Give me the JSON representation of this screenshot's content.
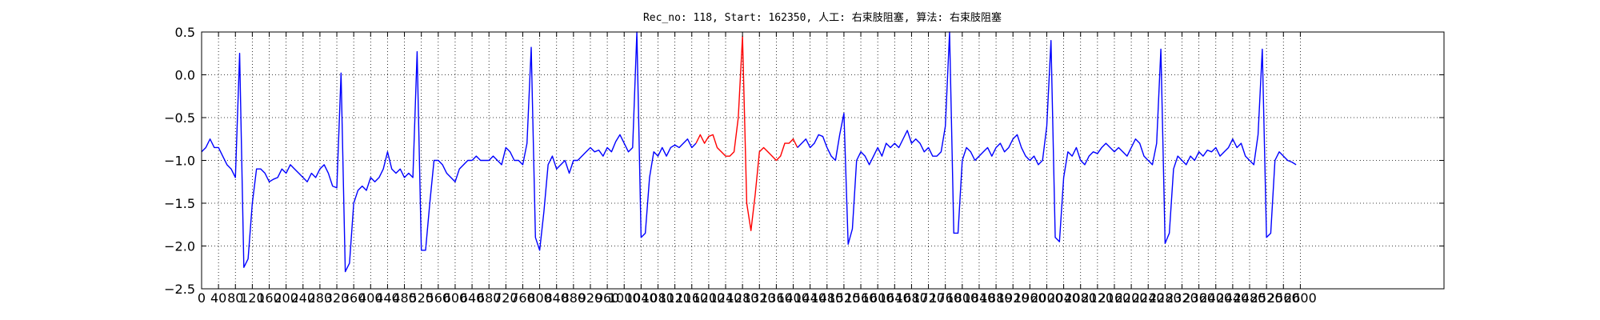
{
  "chart_data": {
    "type": "line",
    "title": "Rec_no: 118, Start: 162350, 人工: 右束肢阻塞, 算法: 右束肢阻塞",
    "xlim": [
      0,
      2940
    ],
    "ylim": [
      -2.5,
      0.5
    ],
    "xticks": [
      0,
      40,
      80,
      120,
      160,
      200,
      240,
      280,
      320,
      360,
      400,
      440,
      480,
      520,
      560,
      600,
      640,
      680,
      720,
      760,
      800,
      840,
      880,
      920,
      960,
      1000,
      1040,
      1080,
      1120,
      1160,
      1200,
      1240,
      1280,
      1320,
      1360,
      1400,
      1440,
      1480,
      1520,
      1560,
      1600,
      1640,
      1680,
      1720,
      1760,
      1800,
      1840,
      1880,
      1920,
      1960,
      2000,
      2040,
      2080,
      2120,
      2160,
      2200,
      2240,
      2280,
      2320,
      2360,
      2400,
      2440,
      2480,
      2520,
      2560,
      2600
    ],
    "yticks": [
      {
        "value": -2.5,
        "label": "−2.5"
      },
      {
        "value": -2.0,
        "label": "−2.0"
      },
      {
        "value": -1.5,
        "label": "−1.5"
      },
      {
        "value": -1.0,
        "label": "−1.0"
      },
      {
        "value": -0.5,
        "label": "−0.5"
      },
      {
        "value": 0.0,
        "label": "0.0"
      },
      0.5
    ],
    "grid": true,
    "series": [
      {
        "color": "#0000ff",
        "x": [
          0,
          10,
          20,
          30,
          40,
          50,
          60,
          70,
          80,
          90,
          100,
          110,
          120,
          130,
          140,
          150,
          160,
          170,
          180,
          190,
          200,
          210,
          220,
          230,
          240,
          250,
          260,
          270,
          280,
          290,
          300,
          310,
          320,
          330,
          340,
          350,
          360,
          370,
          380,
          390,
          400,
          410,
          420,
          430,
          440,
          450,
          460,
          470,
          480,
          490,
          500,
          510,
          520,
          530,
          540,
          550,
          560,
          570,
          580,
          590,
          600,
          610,
          620,
          630,
          640,
          650,
          660,
          670,
          680,
          690,
          700,
          710,
          720,
          730,
          740,
          750,
          760,
          770,
          780,
          790,
          800,
          810,
          820,
          830,
          840,
          850,
          860,
          870,
          880,
          890,
          900,
          910,
          920,
          930,
          940,
          950,
          960,
          970,
          980,
          990,
          1000,
          1010,
          1020,
          1030,
          1040,
          1050,
          1060,
          1070,
          1080,
          1090,
          1100,
          1110,
          1120,
          1130,
          1140,
          1150,
          1160,
          1170
        ],
        "values": [
          -0.9,
          -0.85,
          -0.75,
          -0.85,
          -0.85,
          -0.95,
          -1.05,
          -1.1,
          -1.2,
          0.25,
          -2.25,
          -2.15,
          -1.5,
          -1.1,
          -1.1,
          -1.15,
          -1.25,
          -1.22,
          -1.2,
          -1.1,
          -1.15,
          -1.05,
          -1.1,
          -1.15,
          -1.2,
          -1.25,
          -1.15,
          -1.2,
          -1.1,
          -1.05,
          -1.15,
          -1.3,
          -1.32,
          0.02,
          -2.3,
          -2.2,
          -1.5,
          -1.35,
          -1.3,
          -1.35,
          -1.2,
          -1.25,
          -1.2,
          -1.1,
          -0.9,
          -1.1,
          -1.15,
          -1.1,
          -1.2,
          -1.15,
          -1.2,
          0.27,
          -2.05,
          -2.05,
          -1.5,
          -1.0,
          -1.0,
          -1.05,
          -1.15,
          -1.2,
          -1.25,
          -1.1,
          -1.05,
          -1.0,
          -1.0,
          -0.95,
          -1.0,
          -1.0,
          -1.0,
          -0.95,
          -1.0,
          -1.05,
          -0.85,
          -0.9,
          -1.0,
          -1.0,
          -1.05,
          -0.8,
          0.32,
          -1.9,
          -2.05,
          -1.6,
          -1.05,
          -0.95,
          -1.1,
          -1.05,
          -1.0,
          -1.15,
          -1.0,
          -1.0,
          -0.95,
          -0.9,
          -0.85,
          -0.9,
          -0.88,
          -0.95,
          -0.85,
          -0.9,
          -0.78,
          -0.7,
          -0.8,
          -0.9,
          -0.85,
          0.5,
          -1.9,
          -1.85,
          -1.2,
          -0.9,
          -0.95,
          -0.85,
          -0.95,
          -0.85,
          -0.82,
          -0.85,
          -0.8,
          -0.75,
          -0.85,
          -0.8
        ]
      },
      {
        "color": "#ff0000",
        "x": [
          1170,
          1180,
          1190,
          1200,
          1210,
          1220,
          1230,
          1240,
          1250,
          1260,
          1270,
          1280,
          1290,
          1300,
          1310,
          1320,
          1330,
          1340,
          1350,
          1360,
          1370,
          1380,
          1390,
          1400,
          1410
        ],
        "values": [
          -0.8,
          -0.7,
          -0.8,
          -0.72,
          -0.7,
          -0.85,
          -0.9,
          -0.95,
          -0.95,
          -0.9,
          -0.5,
          0.45,
          -1.5,
          -1.82,
          -1.4,
          -0.9,
          -0.85,
          -0.9,
          -0.95,
          -1.0,
          -0.95,
          -0.8,
          -0.8,
          -0.75,
          -0.85
        ]
      },
      {
        "color": "#0000ff",
        "x": [
          1410,
          1420,
          1430,
          1440,
          1450,
          1460,
          1470,
          1480,
          1490,
          1500,
          1510,
          1520,
          1530,
          1540,
          1550,
          1560,
          1570,
          1580,
          1590,
          1600,
          1610,
          1620,
          1630,
          1640,
          1650,
          1660,
          1670,
          1680,
          1690,
          1700,
          1710,
          1720,
          1730,
          1740,
          1750,
          1760,
          1770,
          1780,
          1790,
          1800,
          1810,
          1820,
          1830,
          1840,
          1850,
          1860,
          1870,
          1880,
          1890,
          1900,
          1910,
          1920,
          1930,
          1940,
          1950,
          1960,
          1970,
          1980,
          1990,
          2000,
          2010,
          2020,
          2030,
          2040,
          2050,
          2060,
          2070,
          2080,
          2090,
          2100,
          2110,
          2120,
          2130,
          2140,
          2150,
          2160,
          2170,
          2180,
          2190,
          2200,
          2210,
          2220,
          2230,
          2240,
          2250,
          2260,
          2270,
          2280,
          2290,
          2300,
          2310,
          2320,
          2330,
          2340,
          2350,
          2360,
          2370,
          2380,
          2390,
          2400,
          2410,
          2420,
          2430,
          2440,
          2450,
          2460,
          2470,
          2480,
          2490,
          2500,
          2510,
          2520,
          2530,
          2540,
          2550,
          2560,
          2570,
          2580,
          2590
        ],
        "values": [
          -0.85,
          -0.8,
          -0.75,
          -0.85,
          -0.8,
          -0.7,
          -0.72,
          -0.85,
          -0.95,
          -1.0,
          -0.7,
          -0.45,
          -1.98,
          -1.8,
          -1.0,
          -0.9,
          -0.95,
          -1.05,
          -0.95,
          -0.85,
          -0.95,
          -0.8,
          -0.85,
          -0.8,
          -0.85,
          -0.75,
          -0.65,
          -0.8,
          -0.75,
          -0.8,
          -0.9,
          -0.85,
          -0.95,
          -0.95,
          -0.9,
          -0.6,
          0.5,
          -1.85,
          -1.85,
          -1.0,
          -0.85,
          -0.9,
          -1.0,
          -0.95,
          -0.9,
          -0.85,
          -0.95,
          -0.85,
          -0.8,
          -0.9,
          -0.85,
          -0.75,
          -0.7,
          -0.85,
          -0.95,
          -1.0,
          -0.95,
          -1.05,
          -1.0,
          -0.6,
          0.4,
          -1.9,
          -1.95,
          -1.2,
          -0.9,
          -0.95,
          -0.85,
          -1.0,
          -1.05,
          -0.95,
          -0.9,
          -0.92,
          -0.85,
          -0.8,
          -0.85,
          -0.9,
          -0.85,
          -0.9,
          -0.95,
          -0.85,
          -0.75,
          -0.8,
          -0.95,
          -1.0,
          -1.05,
          -0.8,
          0.3,
          -1.97,
          -1.85,
          -1.1,
          -0.95,
          -1.0,
          -1.05,
          -0.95,
          -1.0,
          -0.9,
          -0.95,
          -0.88,
          -0.9,
          -0.85,
          -0.95,
          -0.9,
          -0.85,
          -0.75,
          -0.85,
          -0.8,
          -0.95,
          -1.0,
          -1.05,
          -0.7,
          0.3,
          -1.9,
          -1.85,
          -1.0,
          -0.9,
          -0.95,
          -1.0,
          -1.02,
          -1.05
        ]
      }
    ]
  }
}
